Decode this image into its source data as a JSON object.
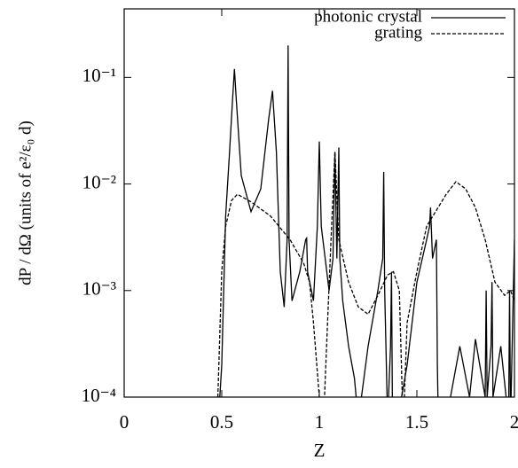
{
  "chart_data": {
    "type": "line",
    "xlabel": "Z",
    "ylabel": "dP / dΩ  (units of e²/ε₀ d)",
    "xlim": [
      0,
      2
    ],
    "xticks": [
      0,
      0.5,
      1,
      1.5,
      2
    ],
    "ylim": [
      0.0001,
      0.44
    ],
    "yticks": [
      {
        "value": 0.0001,
        "label": "10⁻⁴"
      },
      {
        "value": 0.001,
        "label": "10⁻³"
      },
      {
        "value": 0.01,
        "label": "10⁻²"
      },
      {
        "value": 0.1,
        "label": "10⁻¹"
      }
    ],
    "log_y": true,
    "legend": "top-right",
    "series": [
      {
        "name": "photonic crystal",
        "color": "#000000",
        "dash": "solid",
        "x": [
          0.49,
          0.5,
          0.52,
          0.54,
          0.555,
          0.565,
          0.575,
          0.6,
          0.65,
          0.7,
          0.74,
          0.76,
          0.78,
          0.8,
          0.82,
          0.835,
          0.84,
          0.845,
          0.86,
          0.9,
          0.93,
          0.935,
          0.94,
          0.97,
          0.99,
          1.0,
          1.01,
          1.03,
          1.05,
          1.07,
          1.08,
          1.09,
          1.1,
          1.105,
          1.12,
          1.15,
          1.18,
          1.2,
          1.25,
          1.3,
          1.325,
          1.33,
          1.335,
          1.35,
          1.365,
          1.37,
          1.375,
          1.4,
          1.45,
          1.5,
          1.55,
          1.565,
          1.57,
          1.58,
          1.6,
          1.605,
          1.61,
          1.65,
          1.72,
          1.77,
          1.8,
          1.85,
          1.855,
          1.86,
          1.88,
          1.885,
          1.89,
          1.93,
          1.97,
          1.975,
          1.98,
          2.0
        ],
        "values": [
          0.0001,
          0.0002,
          0.005,
          0.02,
          0.06,
          0.12,
          0.06,
          0.012,
          0.0055,
          0.009,
          0.04,
          0.075,
          0.02,
          0.0015,
          0.0007,
          0.003,
          0.2,
          0.003,
          0.0008,
          0.0015,
          0.003,
          0.0031,
          0.0015,
          0.0008,
          0.004,
          0.025,
          0.004,
          0.002,
          0.001,
          0.002,
          0.02,
          0.002,
          0.022,
          0.002,
          0.0008,
          0.0003,
          0.00015,
          6e-05,
          0.0003,
          0.001,
          0.002,
          0.013,
          0.001,
          6e-05,
          0.0003,
          0.0015,
          6e-05,
          6e-05,
          0.0002,
          0.0012,
          0.003,
          0.004,
          0.006,
          0.002,
          0.003,
          0.0002,
          6e-05,
          6e-05,
          0.0003,
          0.0001,
          0.00035,
          0.0001,
          0.001,
          0.0001,
          0.0003,
          0.0012,
          0.0001,
          0.0003,
          6e-05,
          0.001,
          6e-05,
          0.003
        ]
      },
      {
        "name": "grating",
        "color": "#000000",
        "dash": "dashed",
        "x": [
          0.48,
          0.5,
          0.52,
          0.55,
          0.58,
          0.65,
          0.75,
          0.85,
          0.92,
          0.95,
          0.97,
          1.0,
          1.02,
          1.04,
          1.06,
          1.08,
          1.1,
          1.15,
          1.2,
          1.25,
          1.3,
          1.35,
          1.38,
          1.41,
          1.43,
          1.45,
          1.5,
          1.55,
          1.65,
          1.7,
          1.75,
          1.8,
          1.85,
          1.9,
          1.95,
          1.98,
          2.0
        ],
        "values": [
          0.0001,
          0.0015,
          0.004,
          0.007,
          0.008,
          0.0068,
          0.005,
          0.003,
          0.0018,
          0.0012,
          0.0005,
          0.0001,
          5e-05,
          0.0004,
          0.003,
          0.02,
          0.003,
          0.0012,
          0.0007,
          0.0006,
          0.0009,
          0.0014,
          0.0015,
          0.001,
          5e-05,
          0.0005,
          0.0015,
          0.004,
          0.008,
          0.0105,
          0.009,
          0.006,
          0.003,
          0.0012,
          0.0009,
          0.001,
          0.0008
        ]
      }
    ]
  }
}
